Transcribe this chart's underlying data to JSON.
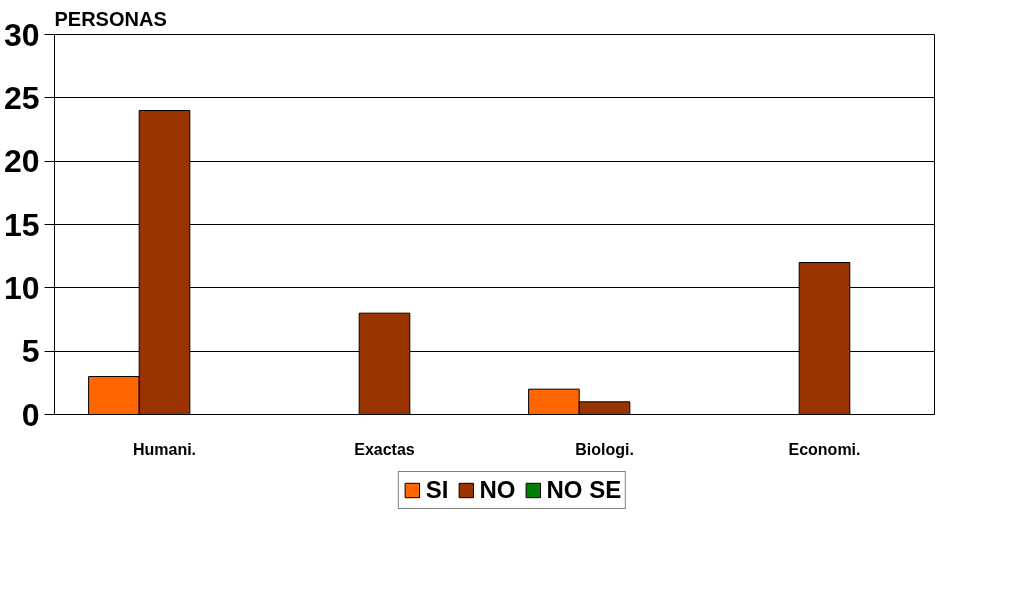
{
  "chart_data": {
    "type": "bar",
    "ylabel": "PERSONAS",
    "categories": [
      "Humani.",
      "Exactas",
      "Biologi.",
      "Economi."
    ],
    "series": [
      {
        "name": "SI",
        "color": "#ff6600",
        "values": [
          3,
          null,
          2,
          null
        ]
      },
      {
        "name": "NO",
        "color": "#993300",
        "values": [
          24,
          8,
          1,
          12
        ]
      },
      {
        "name": "NO SE",
        "color": "#008000",
        "values": [
          null,
          null,
          null,
          null
        ]
      }
    ],
    "ylim": [
      0,
      30
    ],
    "yticks": [
      0,
      5,
      10,
      15,
      20,
      25,
      30
    ],
    "grid": "y",
    "legend": "bottom"
  }
}
